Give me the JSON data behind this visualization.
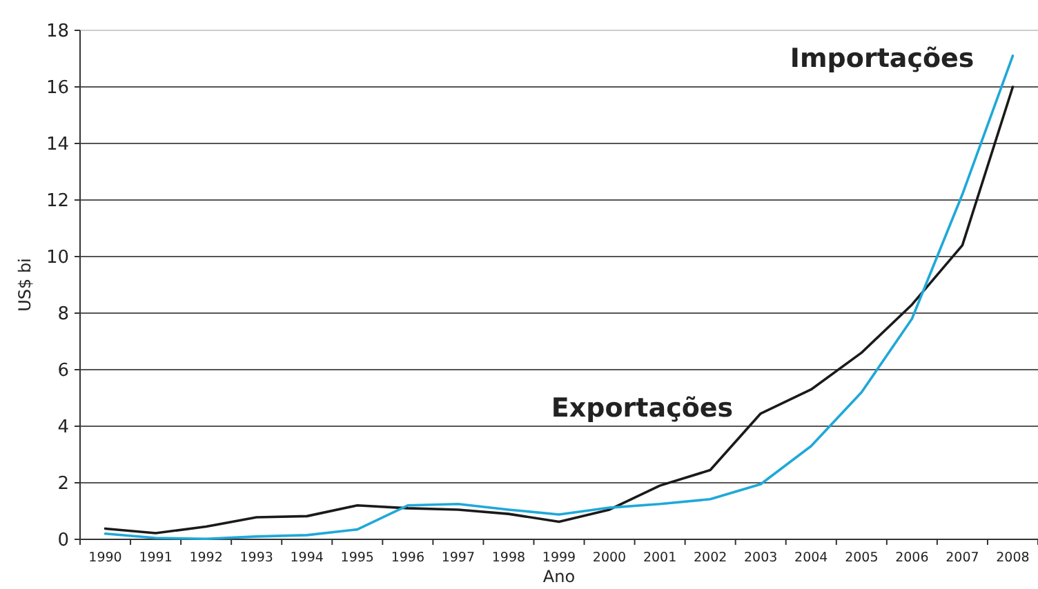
{
  "chart_data": {
    "type": "line",
    "xlabel": "Ano",
    "ylabel": "US$ bi",
    "categories": [
      "1990",
      "1991",
      "1992",
      "1993",
      "1994",
      "1995",
      "1996",
      "1997",
      "1998",
      "1999",
      "2000",
      "2001",
      "2002",
      "2003",
      "2004",
      "2005",
      "2006",
      "2007",
      "2008"
    ],
    "series": [
      {
        "name": "Exportações",
        "color": "#1a1a1a",
        "values": [
          0.38,
          0.22,
          0.45,
          0.78,
          0.82,
          1.2,
          1.1,
          1.05,
          0.9,
          0.62,
          1.05,
          1.9,
          2.45,
          4.45,
          5.3,
          6.6,
          8.3,
          10.4,
          16.0
        ]
      },
      {
        "name": "Importações",
        "color": "#1fa8d8",
        "values": [
          0.2,
          0.05,
          0.02,
          0.1,
          0.15,
          0.35,
          1.2,
          1.25,
          1.05,
          0.88,
          1.12,
          1.25,
          1.42,
          1.95,
          3.3,
          5.2,
          7.8,
          12.2,
          17.1
        ]
      }
    ],
    "ylim": [
      0,
      18
    ],
    "yticks": [
      0,
      2,
      4,
      6,
      8,
      10,
      12,
      14,
      16,
      18
    ],
    "grid": "y",
    "legend": false,
    "marker": "none",
    "line_style": "solid"
  }
}
